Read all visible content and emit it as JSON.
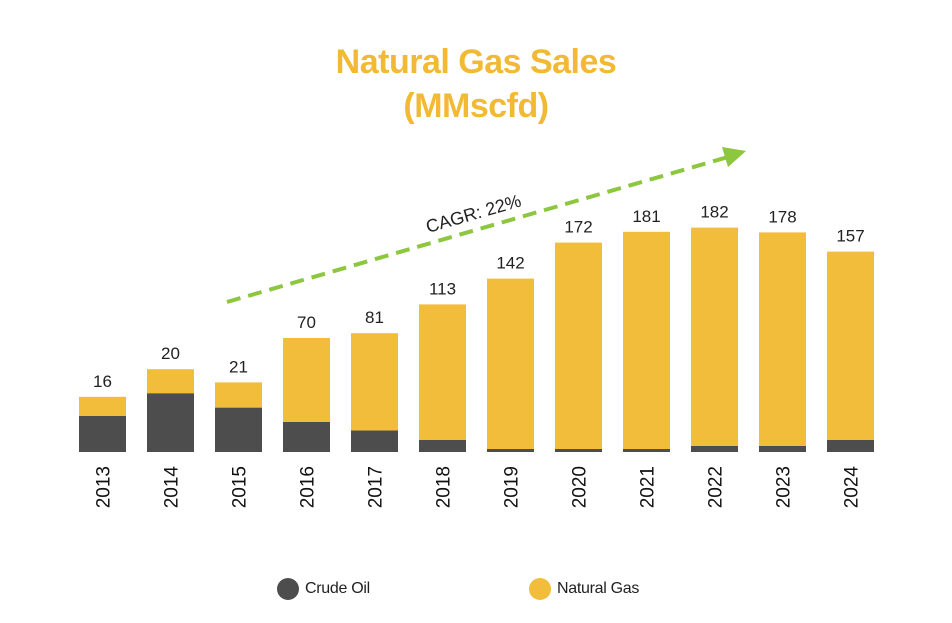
{
  "chart_data": {
    "type": "bar",
    "stacked": true,
    "title": "Natural Gas Sales",
    "subtitle": "(MMscfd)",
    "categories": [
      "2013",
      "2014",
      "2015",
      "2016",
      "2017",
      "2018",
      "2019",
      "2020",
      "2021",
      "2022",
      "2023",
      "2024"
    ],
    "series": [
      {
        "name": "Crude Oil",
        "color": "#4d4d4d",
        "values": [
          30,
          49,
          37,
          25,
          18,
          10,
          2.5,
          2.5,
          2.5,
          5,
          5,
          10
        ]
      },
      {
        "name": "Natural Gas",
        "color": "#f2bd3a",
        "values": [
          16,
          20,
          21,
          70,
          81,
          113,
          142,
          172,
          181,
          182,
          178,
          157
        ]
      }
    ],
    "data_labels": [
      "16",
      "20",
      "21",
      "70",
      "81",
      "113",
      "142",
      "172",
      "181",
      "182",
      "178",
      "157"
    ],
    "annotation": "CAGR: 22%",
    "annotation_color": "#8dc63f",
    "ylim": [
      0,
      190
    ],
    "grid": false,
    "legend_position": "bottom"
  }
}
